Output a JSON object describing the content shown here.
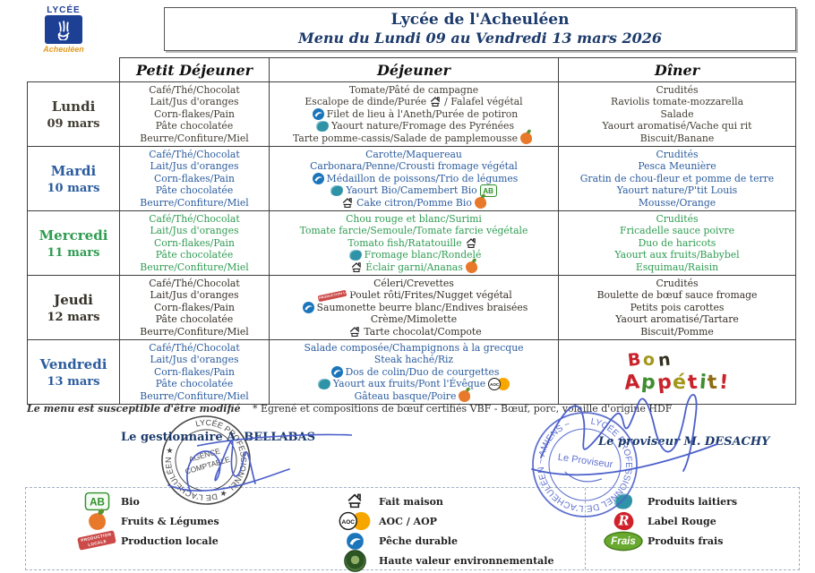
{
  "logo": {
    "top": "LYCÉE",
    "bottom": "Acheuléen"
  },
  "header": {
    "title": "Lycée de l'Acheuléen",
    "subtitle": "Menu du Lundi 09 au Vendredi 13 mars 2026"
  },
  "columns": [
    "Petit Déjeuner",
    "Déjeuner",
    "Dîner"
  ],
  "icon_glyphs": {
    "bio": "AB",
    "aoc": "AOC",
    "label_rouge": "R",
    "produits_frais": "Frais",
    "production_locale": "PRODUCTION LOCALE"
  },
  "days": [
    {
      "name": "Lundi",
      "date": "09 mars",
      "color": "#423d33",
      "petit_dejeuner": [
        "Café/Thé/Chocolat",
        "Lait/Jus d'oranges",
        "Corn-flakes/Pain",
        "Pâte chocolatée",
        "Beurre/Confiture/Miel"
      ],
      "dejeuner": [
        [
          {
            "t": "Tomate/Pâté de campagne"
          }
        ],
        [
          {
            "t": "Escalope de dinde/Purée"
          },
          {
            "i": "fait-maison"
          },
          {
            "t": "/ Falafel végétal"
          }
        ],
        [
          {
            "i": "peche-durable"
          },
          {
            "t": "Filet de lieu à l'Aneth/Purée de potiron"
          }
        ],
        [
          {
            "i": "produits-laitiers"
          },
          {
            "t": "Yaourt nature/Fromage des Pyrénées"
          }
        ],
        [
          {
            "t": "Tarte pomme-cassis/Salade de pamplemousse"
          },
          {
            "i": "fruits-legumes"
          }
        ]
      ],
      "diner": [
        "Crudités",
        "Raviolis tomate-mozzarella",
        "Salade",
        "Yaourt aromatisé/Vache qui rit",
        "Biscuit/Banane"
      ]
    },
    {
      "name": "Mardi",
      "date": "10 mars",
      "color": "#2b5c9e",
      "petit_dejeuner": [
        "Café/Thé/Chocolat",
        "Lait/Jus d'oranges",
        "Corn-flakes/Pain",
        "Pâte chocolatée",
        "Beurre/Confiture/Miel"
      ],
      "dejeuner": [
        [
          {
            "t": "Carotte/Maquereau"
          }
        ],
        [
          {
            "t": "Carbonara/Penne/Crousti fromage végétal"
          }
        ],
        [
          {
            "i": "peche-durable"
          },
          {
            "t": "Médaillon de poissons/Trio de légumes"
          }
        ],
        [
          {
            "i": "produits-laitiers"
          },
          {
            "t": "Yaourt Bio/Camembert Bio"
          },
          {
            "i": "bio"
          }
        ],
        [
          {
            "i": "fait-maison"
          },
          {
            "t": "Cake citron/Pomme Bio"
          },
          {
            "i": "fruits-legumes"
          }
        ]
      ],
      "diner": [
        "Crudités",
        "Pesca Meunière",
        "Gratin de chou-fleur et pomme de terre",
        "Yaourt nature/P'tit Louis",
        "Mousse/Orange"
      ]
    },
    {
      "name": "Mercredi",
      "date": "11 mars",
      "color": "#2f9c52",
      "petit_dejeuner": [
        "Café/Thé/Chocolat",
        "Lait/Jus d'oranges",
        "Corn-flakes/Pain",
        "Pâte chocolatée",
        "Beurre/Confiture/Miel"
      ],
      "dejeuner": [
        [
          {
            "t": "Chou rouge et blanc/Surimi"
          }
        ],
        [
          {
            "t": "Tomate farcie/Semoule/Tomate farcie végétale"
          }
        ],
        [
          {
            "t": "Tomato fish/Ratatouille"
          },
          {
            "i": "fait-maison"
          }
        ],
        [
          {
            "i": "produits-laitiers"
          },
          {
            "t": "Fromage blanc/Rondelé"
          }
        ],
        [
          {
            "i": "fait-maison"
          },
          {
            "t": "Éclair garni/Ananas"
          },
          {
            "i": "fruits-legumes"
          }
        ]
      ],
      "diner": [
        "Crudités",
        "Fricadelle sauce poivre",
        "Duo de haricots",
        "Yaourt aux fruits/Babybel",
        "Esquimau/Raisin"
      ]
    },
    {
      "name": "Jeudi",
      "date": "12 mars",
      "color": "#363128",
      "petit_dejeuner": [
        "Café/Thé/Chocolat",
        "Lait/Jus d'oranges",
        "Corn-flakes/Pain",
        "Pâte chocolatée",
        "Beurre/Confiture/Miel"
      ],
      "dejeuner": [
        [
          {
            "t": "Céleri/Crevettes"
          }
        ],
        [
          {
            "i": "production-locale"
          },
          {
            "t": "Poulet rôti/Frites/Nugget végétal"
          }
        ],
        [
          {
            "i": "peche-durable"
          },
          {
            "t": "Saumonette beurre blanc/Endives braisées"
          }
        ],
        [
          {
            "t": "Crème/Mimolette"
          }
        ],
        [
          {
            "i": "fait-maison"
          },
          {
            "t": "Tarte chocolat/Compote"
          }
        ]
      ],
      "diner": [
        "Crudités",
        "Boulette de bœuf sauce fromage",
        "Petits pois carottes",
        "Yaourt aromatisé/Tartare",
        "Biscuit/Pomme"
      ]
    },
    {
      "name": "Vendredi",
      "date": "13 mars",
      "color": "#2b5c9e",
      "petit_dejeuner": [
        "Café/Thé/Chocolat",
        "Lait/Jus d'oranges",
        "Corn-flakes/Pain",
        "Pâte chocolatée",
        "Beurre/Confiture/Miel"
      ],
      "dejeuner": [
        [
          {
            "t": "Salade composée/Champignons à la grecque"
          }
        ],
        [
          {
            "t": "Steak haché/Riz"
          }
        ],
        [
          {
            "i": "peche-durable"
          },
          {
            "t": "Dos de colin/Duo de courgettes"
          }
        ],
        [
          {
            "i": "produits-laitiers"
          },
          {
            "t": "Yaourt aux fruits/Pont l'Évêque"
          },
          {
            "i": "aoc-aop"
          }
        ],
        [
          {
            "t": "Gâteau basque/Poire"
          },
          {
            "i": "fruits-legumes"
          }
        ]
      ],
      "diner_special": {
        "text": "Bon Appétit !",
        "lines": [
          [
            [
              "B",
              "#c8232b"
            ],
            [
              "o",
              "#a3971a"
            ],
            [
              "n",
              "#33301f"
            ]
          ],
          [
            [
              "A",
              "#c8232b"
            ],
            [
              "p",
              "#3f8d2f"
            ],
            [
              "p",
              "#c8232b"
            ],
            [
              "é",
              "#a3971a"
            ],
            [
              "t",
              "#c8232b"
            ],
            [
              "i",
              "#3f8d2f"
            ],
            [
              "t",
              "#8f6b12"
            ],
            [
              " !",
              "#c8232b"
            ]
          ]
        ]
      }
    }
  ],
  "footer": {
    "note_italic": "Le menu est susceptible d'être modifié",
    "note_asterisk": "* Egrené et compositions de bœuf certifiés VBF - Bœuf, porc, volaille d'origine HDF",
    "gestionnaire_label": "Le gestionnaire A. BELLABAS",
    "proviseur_label": "Le proviseur  M. DESACHY",
    "stamp_left": {
      "ring": "LYCÉE PROFESSIONNEL ★ DE L'ACHEULÉEN ★",
      "center_line1": "AGENCE",
      "center_line2": "COMPTABLE"
    },
    "stamp_right": {
      "ring": "LYCÉE PROFESSIONNEL DE L'ACHEULÉEN ~ AMIENS ~",
      "center": "Le Proviseur"
    }
  },
  "legend": {
    "columns": [
      [
        {
          "icon": "bio",
          "label": "Bio"
        },
        {
          "icon": "fruits-legumes",
          "label": "Fruits & Légumes"
        },
        {
          "icon": "production-locale",
          "label": "Production locale"
        }
      ],
      [
        {
          "icon": "fait-maison",
          "label": "Fait maison"
        },
        {
          "icon": "aoc-aop",
          "label": "AOC / AOP"
        },
        {
          "icon": "peche-durable",
          "label": "Pêche durable"
        },
        {
          "icon": "hve",
          "label": "Haute valeur environnementale"
        }
      ],
      [
        {
          "icon": "produits-laitiers",
          "label": "Produits laitiers"
        },
        {
          "icon": "label-rouge",
          "label": "Label Rouge"
        },
        {
          "icon": "produits-frais",
          "label": "Produits frais"
        }
      ]
    ]
  }
}
